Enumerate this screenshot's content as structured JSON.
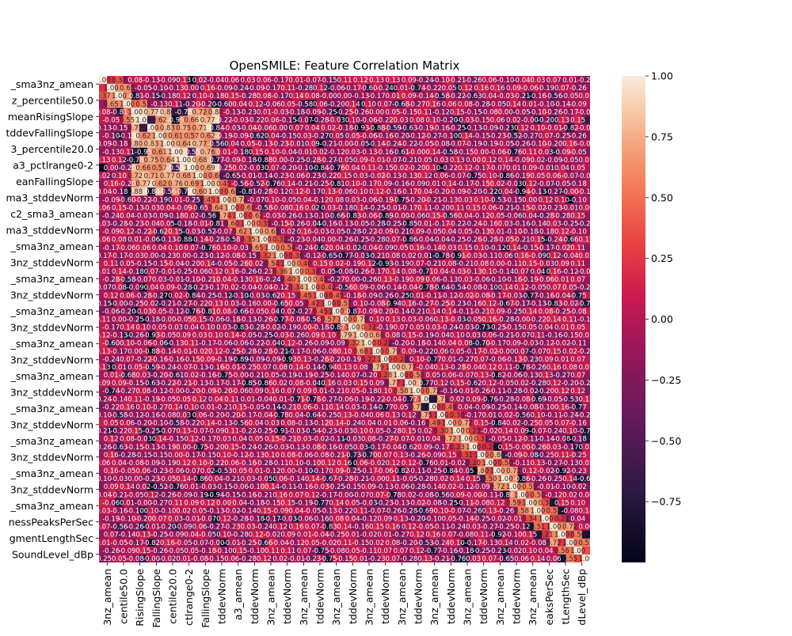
{
  "chart_data": {
    "type": "heatmap",
    "title": "OpenSMILE: Feature Correlation Matrix",
    "xlabel": "",
    "ylabel": "",
    "annotated": true,
    "colorscale": "rocket",
    "vmin": -1.0,
    "vmax": 1.0,
    "colorbar_ticks": [
      "1.00",
      "0.75",
      "0.50",
      "0.25",
      "0.00",
      "−0.25",
      "−0.50",
      "−0.75"
    ],
    "colorbar_tick_values": [
      1.0,
      0.75,
      0.5,
      0.25,
      0.0,
      -0.25,
      -0.5,
      -0.75
    ],
    "y_tick_labels": [
      "_sma3nz_amean",
      "z_percentile50.0",
      "meanRisingSlope",
      "tddevFallingSlope",
      "3_percentile20.0",
      "a3_pctlrange0-2",
      "eanFallingSlope",
      "ma3_stddevNorm",
      "c2_sma3_amean",
      "ma3_stddevNorm",
      "_sma3nz_amean",
      "3nz_stddevNorm",
      "_sma3nz_amean",
      "3nz_stddevNorm",
      "_sma3nz_amean",
      "3nz_stddevNorm",
      "_sma3nz_amean",
      "3nz_stddevNorm",
      "_sma3nz_amean",
      "3nz_stddevNorm",
      "_sma3nz_amean",
      "3nz_stddevNorm",
      "_sma3nz_amean",
      "3nz_stddevNorm",
      "_sma3nz_amean",
      "3nz_stddevNorm",
      "_sma3nz_amean",
      "nessPeaksPerSec",
      "gmentLengthSec",
      "SoundLevel_dBp"
    ],
    "x_tick_labels": [
      "3nz_amean",
      "centile50.0",
      "RisingSlope",
      "FallingSlope",
      "centile20.0",
      "ctlrange0-2",
      "FallingSlope",
      "tddevNorm",
      "a3_amean",
      "tddevNorm",
      "3nz_amean",
      "tddevNorm",
      "3nz_amean",
      "tddevNorm",
      "3nz_amean",
      "tddevNorm",
      "3nz_amean",
      "tddevNorm",
      "3nz_amean",
      "tddevNorm",
      "3nz_amean",
      "tddevNorm",
      "3nz_amean",
      "tddevNorm",
      "3nz_amean",
      "tddevNorm",
      "3nz_amean",
      "eaksPerSec",
      "tLengthSec",
      "dLevel_dBp"
    ]
  }
}
